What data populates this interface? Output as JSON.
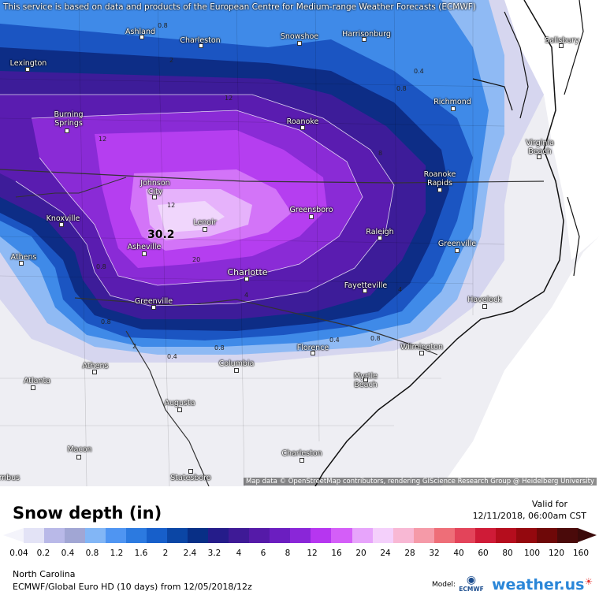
{
  "map": {
    "top_note": "This service is based on data and products of the European Centre for Medium-range Weather Forecasts (ECMWF)",
    "attribution": "Map data © OpenStreetMap contributors, rendering GIScience Research Group @ Heidelberg University",
    "max_value_label": "30.2",
    "cities": [
      {
        "name": "Ashland"
      },
      {
        "name": "Charleston"
      },
      {
        "name": "Snowshoe"
      },
      {
        "name": "Harrisonburg"
      },
      {
        "name": "Salisbury"
      },
      {
        "name": "Lexington"
      },
      {
        "name": "Richmond"
      },
      {
        "name": "Burning Springs"
      },
      {
        "name": "Roanoke"
      },
      {
        "name": "Virginia Beach"
      },
      {
        "name": "Johnson City"
      },
      {
        "name": "Roanoke Rapids"
      },
      {
        "name": "Knoxville"
      },
      {
        "name": "Lenoir"
      },
      {
        "name": "Greensboro"
      },
      {
        "name": "Raleigh"
      },
      {
        "name": "Athens"
      },
      {
        "name": "Asheville"
      },
      {
        "name": "Greenville"
      },
      {
        "name": "Charlotte"
      },
      {
        "name": "Fayetteville"
      },
      {
        "name": "Havelock"
      },
      {
        "name": "Greenville"
      },
      {
        "name": "Florence"
      },
      {
        "name": "Wilmington"
      },
      {
        "name": "Athens"
      },
      {
        "name": "Columbia"
      },
      {
        "name": "Atlanta"
      },
      {
        "name": "Myrtle Beach"
      },
      {
        "name": "Augusta"
      },
      {
        "name": "Macon"
      },
      {
        "name": "Charleston"
      },
      {
        "name": "Statesboro"
      },
      {
        "name": "mbus"
      }
    ],
    "contour_labels": [
      "0.8",
      "2",
      "12",
      "0.4",
      "0.8",
      "12",
      "8",
      "0.8",
      "12",
      "30.2",
      "20",
      "2",
      "0.4",
      "0.8",
      "0.4",
      "0.8",
      "4",
      "0.8",
      "4"
    ]
  },
  "legend": {
    "title": "Snow depth (in)",
    "valid_label": "Valid for",
    "valid_time": "12/11/2018, 06:00am CST",
    "scale_colors": [
      "#e3e3f6",
      "#b9b9e8",
      "#a1a6d4",
      "#82b6f6",
      "#4f95f2",
      "#2c7ae0",
      "#175fca",
      "#0b46a5",
      "#082f86",
      "#251c8a",
      "#3e1a96",
      "#551aa8",
      "#6b1ec0",
      "#8a26d8",
      "#b636f0",
      "#d45ef8",
      "#e7a4fb",
      "#f4d0fb",
      "#f8b8d4",
      "#f59aa8",
      "#ee6e78",
      "#e3445a",
      "#cf1b37",
      "#b50d1d",
      "#94080e",
      "#6e0808",
      "#4a0a0a"
    ],
    "ticks": [
      "0.04",
      "0.2",
      "0.4",
      "0.8",
      "1.2",
      "1.6",
      "2",
      "2.4",
      "3.2",
      "4",
      "6",
      "8",
      "12",
      "16",
      "20",
      "24",
      "28",
      "32",
      "40",
      "60",
      "80",
      "100",
      "120",
      "160"
    ],
    "region": "North Carolina",
    "model_run": "ECMWF/Global Euro HD (10 days) from 12/05/2018/12z",
    "model_label": "Model:",
    "ecmwf_label": "ECMWF",
    "brand": "weather.us"
  },
  "colors": {
    "background_snow_free": "#f1f1f4",
    "heavy_snow_core": "#b53ef0",
    "max_core": "#e0c0fb"
  }
}
